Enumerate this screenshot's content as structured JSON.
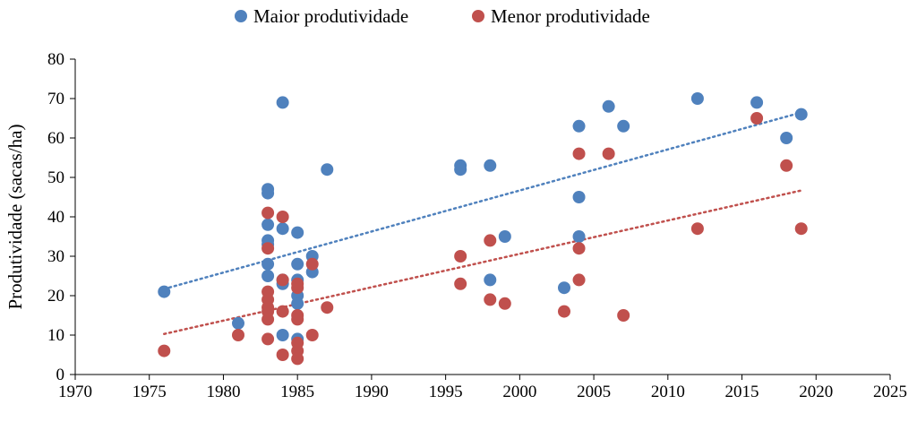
{
  "chart_data": {
    "type": "scatter",
    "ylabel": "Produtividade (sacas/ha)",
    "xlim": [
      1970,
      2025
    ],
    "ylim": [
      0,
      80
    ],
    "xticks": [
      "1970",
      "1975",
      "1980",
      "1985",
      "1990",
      "1995",
      "2000",
      "2005",
      "2010",
      "2015",
      "2020",
      "2025"
    ],
    "yticks": [
      "0",
      "10",
      "20",
      "30",
      "40",
      "50",
      "60",
      "70",
      "80"
    ],
    "grid": false,
    "legend_position": "top",
    "series": [
      {
        "name": "Maior produtividade",
        "color": "#4f81bd",
        "trendline": "linear",
        "points": [
          [
            1976,
            21
          ],
          [
            1981,
            13
          ],
          [
            1983,
            47
          ],
          [
            1983,
            46
          ],
          [
            1983,
            38
          ],
          [
            1983,
            34
          ],
          [
            1983,
            33
          ],
          [
            1983,
            28
          ],
          [
            1983,
            25
          ],
          [
            1984,
            69
          ],
          [
            1984,
            37
          ],
          [
            1984,
            24
          ],
          [
            1984,
            23
          ],
          [
            1984,
            10
          ],
          [
            1985,
            36
          ],
          [
            1985,
            28
          ],
          [
            1985,
            24
          ],
          [
            1985,
            20
          ],
          [
            1985,
            18
          ],
          [
            1985,
            9
          ],
          [
            1986,
            30
          ],
          [
            1986,
            26
          ],
          [
            1987,
            52
          ],
          [
            1996,
            53
          ],
          [
            1996,
            52
          ],
          [
            1998,
            53
          ],
          [
            1998,
            24
          ],
          [
            1999,
            35
          ],
          [
            2003,
            22
          ],
          [
            2004,
            63
          ],
          [
            2004,
            45
          ],
          [
            2004,
            35
          ],
          [
            2006,
            68
          ],
          [
            2007,
            63
          ],
          [
            2012,
            70
          ],
          [
            2016,
            69
          ],
          [
            2018,
            60
          ],
          [
            2019,
            66
          ]
        ]
      },
      {
        "name": "Menor produtividade",
        "color": "#c0504d",
        "trendline": "linear",
        "points": [
          [
            1976,
            6
          ],
          [
            1981,
            10
          ],
          [
            1983,
            41
          ],
          [
            1983,
            32
          ],
          [
            1983,
            21
          ],
          [
            1983,
            19
          ],
          [
            1983,
            17
          ],
          [
            1983,
            16
          ],
          [
            1983,
            14
          ],
          [
            1983,
            9
          ],
          [
            1984,
            40
          ],
          [
            1984,
            24
          ],
          [
            1984,
            16
          ],
          [
            1984,
            5
          ],
          [
            1985,
            23
          ],
          [
            1985,
            22
          ],
          [
            1985,
            15
          ],
          [
            1985,
            14
          ],
          [
            1985,
            8
          ],
          [
            1985,
            6
          ],
          [
            1985,
            4
          ],
          [
            1986,
            28
          ],
          [
            1986,
            10
          ],
          [
            1987,
            17
          ],
          [
            1996,
            30
          ],
          [
            1996,
            23
          ],
          [
            1998,
            34
          ],
          [
            1998,
            19
          ],
          [
            1999,
            18
          ],
          [
            2003,
            16
          ],
          [
            2004,
            56
          ],
          [
            2004,
            32
          ],
          [
            2004,
            24
          ],
          [
            2006,
            56
          ],
          [
            2007,
            15
          ],
          [
            2012,
            37
          ],
          [
            2016,
            65
          ],
          [
            2018,
            53
          ],
          [
            2019,
            37
          ]
        ]
      }
    ]
  }
}
